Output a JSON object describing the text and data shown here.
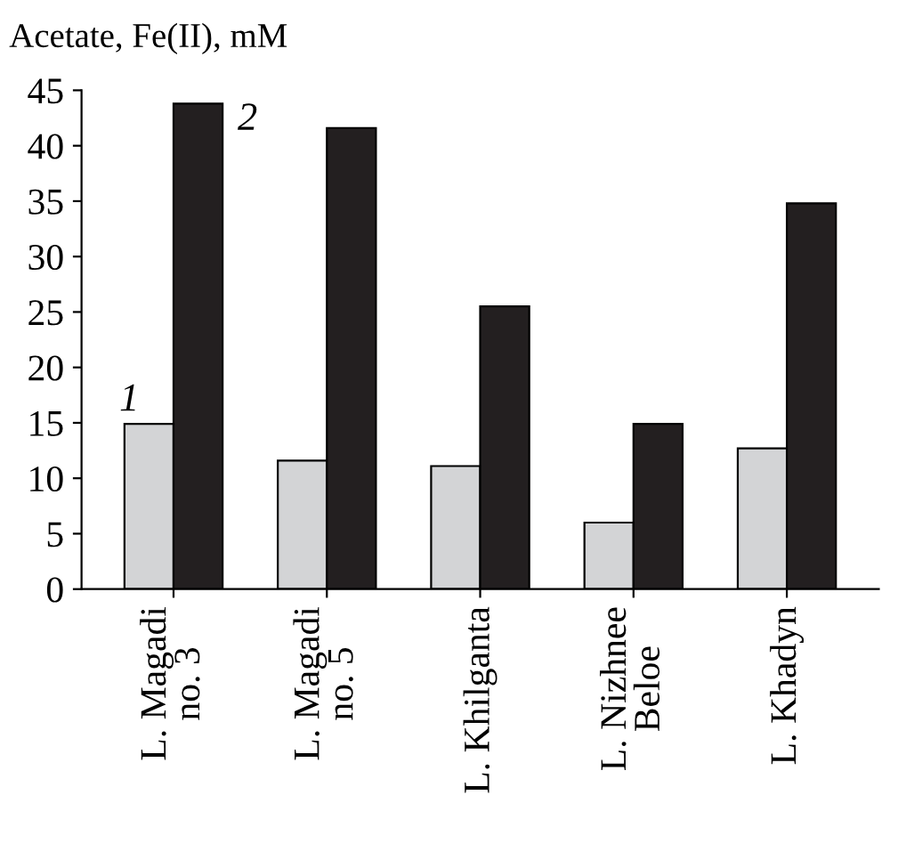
{
  "chart_data": {
    "type": "bar",
    "ylabel": "Acetate, Fe(II), mM",
    "categories": [
      "L. Magadi\nno. 3",
      "L. Magadi\nno. 5",
      "L. Khilganta",
      "L. Nizhnee\nBeloe",
      "L. Khadyn"
    ],
    "series": [
      {
        "color": "#d3d4d6",
        "values": [
          14.9,
          11.6,
          11.1,
          6.0,
          12.7
        ]
      },
      {
        "color": "#231f20",
        "values": [
          43.8,
          41.6,
          25.5,
          14.9,
          34.8
        ]
      }
    ],
    "ylim": [
      0,
      45
    ],
    "yticks": [
      0,
      5,
      10,
      15,
      20,
      25,
      30,
      35,
      40,
      45
    ],
    "grid": false,
    "legend": false,
    "annotations": [
      {
        "text": "1",
        "x": "L. Magadi\nno. 3",
        "y": 14.9
      },
      {
        "text": "2",
        "x": "L. Magadi\nno. 3",
        "y": 43.8
      }
    ]
  }
}
